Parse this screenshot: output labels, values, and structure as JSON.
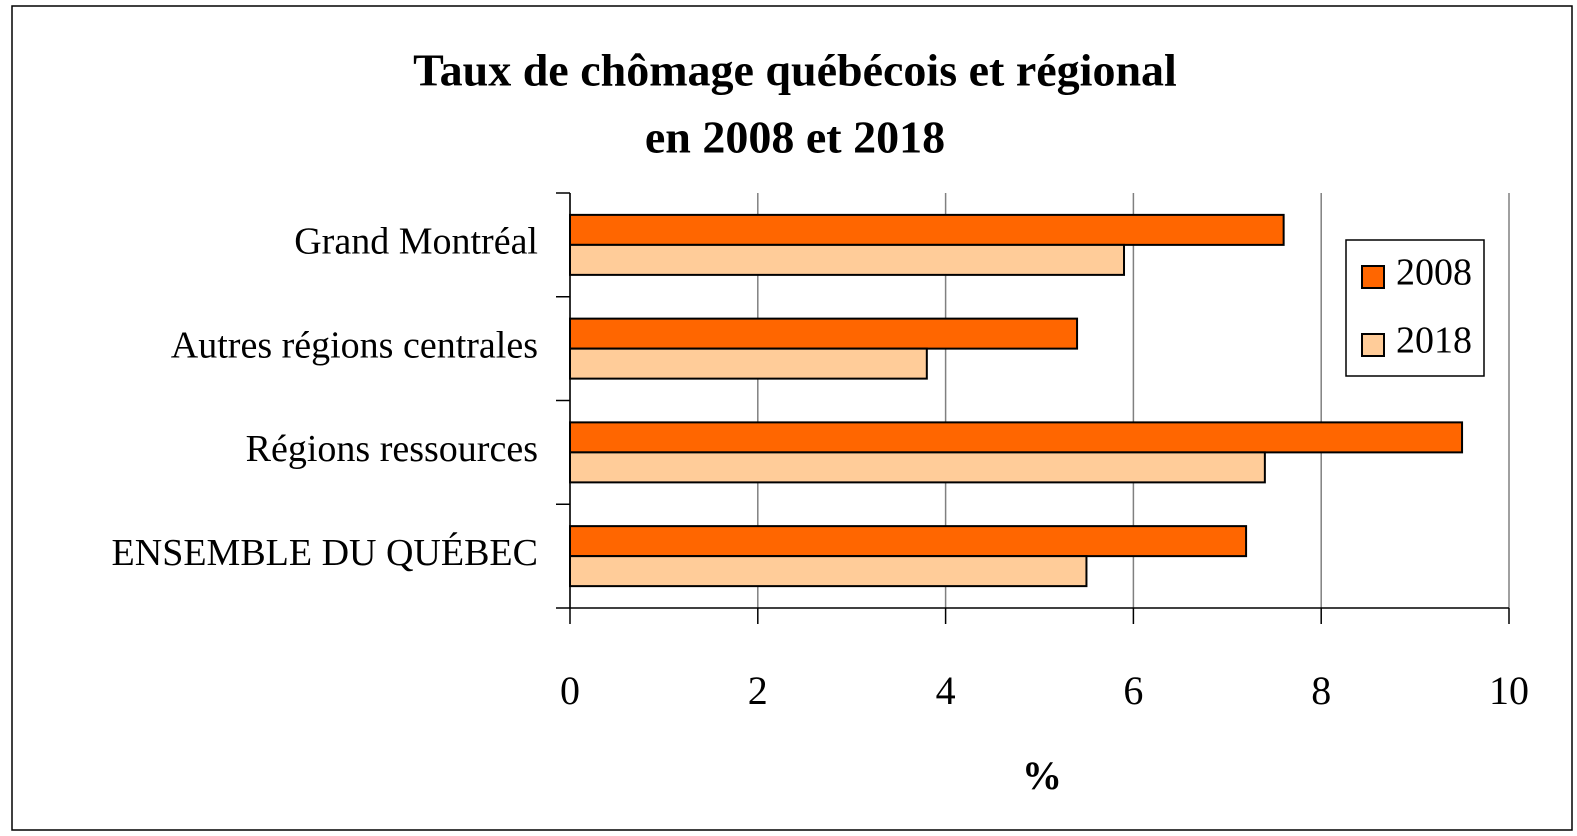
{
  "chart_data": {
    "type": "hbar",
    "title": [
      "Taux de chômage québécois et régional",
      "en 2008 et 2018"
    ],
    "xlabel": "%",
    "categories": [
      "Grand Montréal",
      "Autres régions centrales",
      "Régions ressources",
      "ENSEMBLE DU QUÉBEC"
    ],
    "series": [
      {
        "name": "2008",
        "color": "#ff6600",
        "values": [
          7.6,
          5.4,
          9.5,
          7.2
        ]
      },
      {
        "name": "2018",
        "color": "#ffcc99",
        "values": [
          5.9,
          3.8,
          7.4,
          5.5
        ]
      }
    ],
    "xlim": [
      0,
      10
    ],
    "xticks": [
      0,
      2,
      4,
      6,
      8,
      10
    ],
    "grid": true,
    "legend": "upper right"
  }
}
